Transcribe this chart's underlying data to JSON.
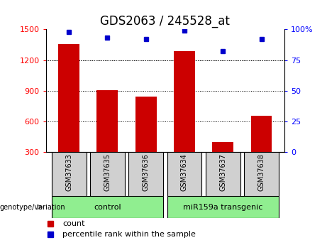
{
  "title": "GDS2063 / 245528_at",
  "samples": [
    "GSM37633",
    "GSM37635",
    "GSM37636",
    "GSM37634",
    "GSM37637",
    "GSM37638"
  ],
  "counts": [
    1360,
    905,
    845,
    1290,
    400,
    655
  ],
  "percentile_ranks": [
    98,
    93,
    92,
    99,
    82,
    92
  ],
  "group_labels": [
    "control",
    "miR159a transgenic"
  ],
  "group_xranges": [
    [
      0,
      2
    ],
    [
      3,
      5
    ]
  ],
  "group_color": "#90EE90",
  "sample_box_color": "#d0d0d0",
  "bar_color": "#CC0000",
  "dot_color": "#0000CC",
  "left_yticks": [
    300,
    600,
    900,
    1200,
    1500
  ],
  "left_ylim": [
    300,
    1500
  ],
  "right_yticks": [
    0,
    25,
    50,
    75,
    100
  ],
  "right_ylim": [
    0,
    100
  ],
  "group_label_text": "genotype/variation",
  "legend_count_label": "count",
  "legend_percentile_label": "percentile rank within the sample",
  "bar_width": 0.55,
  "background_color": "#ffffff",
  "title_fontsize": 12,
  "tick_fontsize": 8,
  "label_fontsize": 8,
  "sample_fontsize": 7
}
